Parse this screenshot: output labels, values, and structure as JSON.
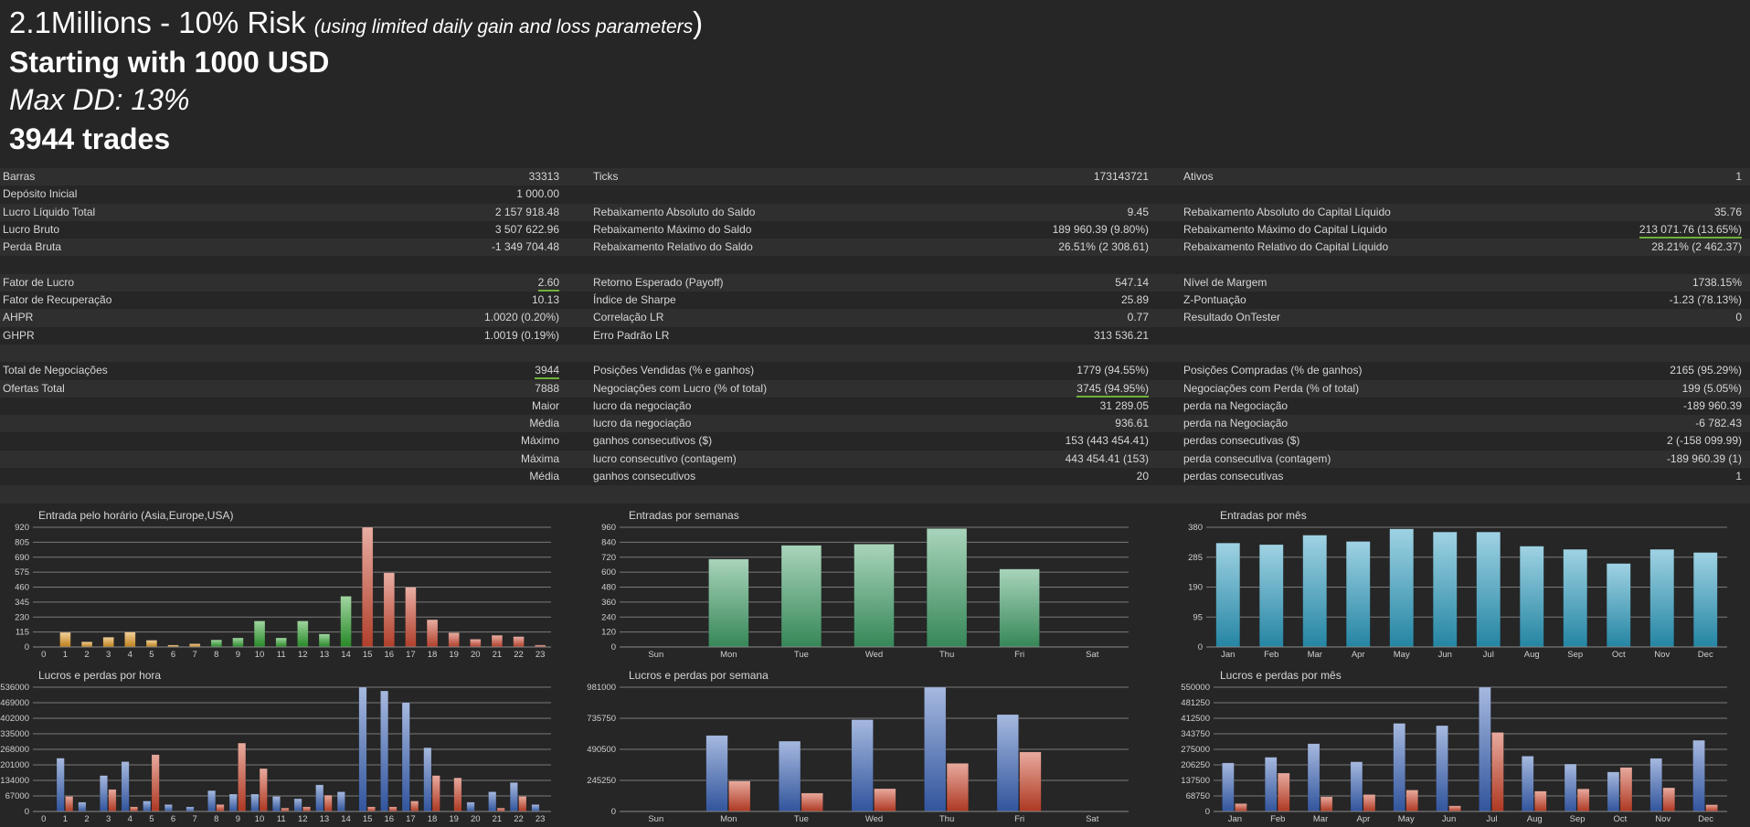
{
  "header": {
    "line1_main": "2.1Millions - 10% Risk ",
    "line1_sub": "(using limited daily gain and loss parameters",
    "line1_end": ")",
    "line2": "Starting with 1000 USD",
    "line3": "Max DD: 13%",
    "line4": "3944 trades"
  },
  "stats_rows": [
    [
      "Barras",
      "33313",
      "Ticks",
      "173143721",
      "Ativos",
      "1"
    ],
    [
      "Depósito Inicial",
      "1 000.00",
      "",
      "",
      "",
      ""
    ],
    [
      "Lucro Líquido Total",
      "2 157 918.48",
      "Rebaixamento Absoluto do Saldo",
      "9.45",
      "Rebaixamento Absoluto do Capital Líquido",
      "35.76"
    ],
    [
      "Lucro Bruto",
      "3 507 622.96",
      "Rebaixamento Máximo do Saldo",
      "189 960.39 (9.80%)",
      "Rebaixamento Máximo do Capital Líquido",
      "213 071.76 (13.65%)"
    ],
    [
      "Perda Bruta",
      "-1 349 704.48",
      "Rebaixamento Relativo do Saldo",
      "26.51% (2 308.61)",
      "Rebaixamento Relativo do Capital Líquido",
      "28.21% (2 462.37)"
    ],
    [
      "",
      "",
      "",
      "",
      "",
      ""
    ],
    [
      "Fator de Lucro",
      "2.60",
      "Retorno Esperado (Payoff)",
      "547.14",
      "Nível de Margem",
      "1738.15%"
    ],
    [
      "Fator de Recuperação",
      "10.13",
      "Índice de Sharpe",
      "25.89",
      "Z-Pontuação",
      "-1.23 (78.13%)"
    ],
    [
      "AHPR",
      "1.0020 (0.20%)",
      "Correlação LR",
      "0.77",
      "Resultado OnTester",
      "0"
    ],
    [
      "GHPR",
      "1.0019 (0.19%)",
      "Erro Padrão LR",
      "313 536.21",
      "",
      ""
    ],
    [
      "",
      "",
      "",
      "",
      "",
      ""
    ],
    [
      "Total de Negociações",
      "3944",
      "Posições Vendidas (% e ganhos)",
      "1779 (94.55%)",
      "Posições Compradas (% de ganhos)",
      "2165 (95.29%)"
    ],
    [
      "Ofertas Total",
      "7888",
      "Negociações com Lucro (% of total)",
      "3745 (94.95%)",
      "Negociações com Perda (% of total)",
      "199 (5.05%)"
    ],
    [
      "",
      "Maior",
      "lucro da negociação",
      "31 289.05",
      "perda na Negociação",
      "-189 960.39"
    ],
    [
      "",
      "Média",
      "lucro da negociação",
      "936.61",
      "perda na Negociação",
      "-6 782.43"
    ],
    [
      "",
      "Máximo",
      "ganhos consecutivos ($)",
      "153 (443 454.41)",
      "perdas consecutivas ($)",
      "2 (-158 099.99)"
    ],
    [
      "",
      "Máxima",
      "lucro consecutivo (contagem)",
      "443 454.41 (153)",
      "perda consecutiva (contagem)",
      "-189 960.39 (1)"
    ],
    [
      "",
      "Média",
      "ganhos consecutivos",
      "20",
      "perdas consecutivas",
      "1"
    ],
    [
      "",
      "",
      "",
      "",
      "",
      ""
    ]
  ],
  "colors": {
    "underline": "#6fb03a",
    "asia": "#e0971f",
    "europe": "#2ea12e",
    "usa": "#cf4a32",
    "week_bars": "#3f9f68",
    "month_bars": "#2a9cc0",
    "profit": "#3a63b8",
    "loss": "#cc4228"
  },
  "chart_data": [
    {
      "type": "bar",
      "title": "Entrada pelo horário (Asia,Europe,USA)",
      "categories": [
        "0",
        "1",
        "2",
        "3",
        "4",
        "5",
        "6",
        "7",
        "8",
        "9",
        "10",
        "11",
        "12",
        "13",
        "14",
        "15",
        "16",
        "17",
        "18",
        "19",
        "20",
        "21",
        "22",
        "23"
      ],
      "values": [
        0,
        112,
        40,
        75,
        115,
        52,
        15,
        25,
        55,
        70,
        200,
        70,
        200,
        100,
        390,
        920,
        570,
        460,
        210,
        110,
        60,
        90,
        80,
        15
      ],
      "groups": [
        "asia",
        "asia",
        "asia",
        "asia",
        "asia",
        "asia",
        "asia",
        "asia",
        "europe",
        "europe",
        "europe",
        "europe",
        "europe",
        "europe",
        "europe",
        "usa",
        "usa",
        "usa",
        "usa",
        "usa",
        "usa",
        "usa",
        "usa",
        "usa"
      ],
      "ylim": [
        0,
        920
      ],
      "yticks": [
        "0",
        "115",
        "230",
        "345",
        "460",
        "575",
        "690",
        "805",
        "920"
      ]
    },
    {
      "type": "bar",
      "title": "Entradas por semanas",
      "categories": [
        "Sun",
        "Mon",
        "Tue",
        "Wed",
        "Thu",
        "Fri",
        "Sat"
      ],
      "values": [
        0,
        705,
        815,
        825,
        950,
        625,
        0
      ],
      "ylim": [
        0,
        960
      ],
      "yticks": [
        "0",
        "120",
        "240",
        "360",
        "480",
        "600",
        "720",
        "840",
        "960"
      ]
    },
    {
      "type": "bar",
      "title": "Entradas por mês",
      "categories": [
        "Jan",
        "Feb",
        "Mar",
        "Apr",
        "May",
        "Jun",
        "Jul",
        "Aug",
        "Sep",
        "Oct",
        "Nov",
        "Dec"
      ],
      "values": [
        330,
        325,
        355,
        335,
        375,
        365,
        365,
        320,
        310,
        265,
        310,
        300
      ],
      "ylim": [
        0,
        380
      ],
      "yticks": [
        "0",
        "95",
        "190",
        "285",
        "380"
      ]
    },
    {
      "type": "bar",
      "title": "Lucros e perdas por hora",
      "categories": [
        "0",
        "1",
        "2",
        "3",
        "4",
        "5",
        "6",
        "7",
        "8",
        "9",
        "10",
        "11",
        "12",
        "13",
        "14",
        "15",
        "16",
        "17",
        "18",
        "19",
        "20",
        "21",
        "22",
        "23"
      ],
      "series": [
        {
          "name": "profit",
          "values": [
            0,
            230000,
            40000,
            155000,
            215000,
            45000,
            30000,
            20000,
            90000,
            75000,
            75000,
            65000,
            55000,
            115000,
            85000,
            536000,
            520000,
            470000,
            275000,
            0,
            40000,
            85000,
            125000,
            30000
          ]
        },
        {
          "name": "loss",
          "values": [
            0,
            65000,
            0,
            95000,
            20000,
            245000,
            0,
            0,
            30000,
            295000,
            185000,
            15000,
            20000,
            70000,
            0,
            20000,
            20000,
            45000,
            155000,
            145000,
            0,
            15000,
            65000,
            0
          ]
        }
      ],
      "ylim": [
        0,
        536000
      ],
      "yticks": [
        "0",
        "67000",
        "134000",
        "201000",
        "268000",
        "335000",
        "402000",
        "469000",
        "536000"
      ]
    },
    {
      "type": "bar",
      "title": "Lucros e perdas por semana",
      "categories": [
        "Sun",
        "Mon",
        "Tue",
        "Wed",
        "Thu",
        "Fri",
        "Sat"
      ],
      "series": [
        {
          "name": "profit",
          "values": [
            0,
            600000,
            555000,
            725000,
            981000,
            765000,
            0
          ]
        },
        {
          "name": "loss",
          "values": [
            0,
            240000,
            145000,
            180000,
            380000,
            470000,
            0
          ]
        }
      ],
      "ylim": [
        0,
        981000
      ],
      "yticks": [
        "0",
        "245250",
        "490500",
        "735750",
        "981000"
      ]
    },
    {
      "type": "bar",
      "title": "Lucros e perdas por mês",
      "categories": [
        "Jan",
        "Feb",
        "Mar",
        "Apr",
        "May",
        "Jun",
        "Jul",
        "Aug",
        "Sep",
        "Oct",
        "Nov",
        "Dec"
      ],
      "series": [
        {
          "name": "profit",
          "values": [
            215000,
            240000,
            300000,
            220000,
            390000,
            380000,
            550000,
            245000,
            210000,
            175000,
            235000,
            315000
          ]
        },
        {
          "name": "loss",
          "values": [
            35000,
            170000,
            65000,
            75000,
            95000,
            25000,
            350000,
            90000,
            100000,
            195000,
            105000,
            30000
          ]
        }
      ],
      "ylim": [
        0,
        550000
      ],
      "yticks": [
        "0",
        "68750",
        "137500",
        "206250",
        "275000",
        "343750",
        "412500",
        "481250",
        "550000"
      ]
    }
  ]
}
